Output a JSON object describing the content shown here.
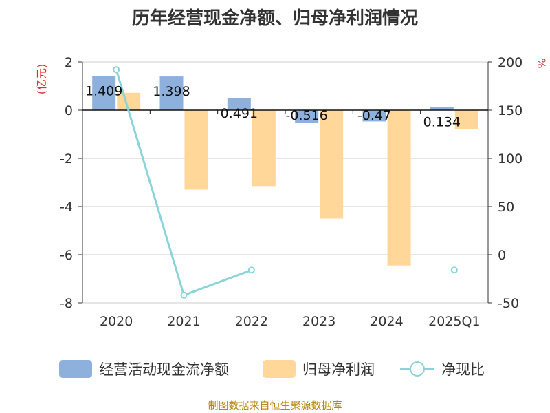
{
  "source": "制图数据来自恒生聚源数据库",
  "chart_data": {
    "type": "bar",
    "title": "历年经营现金净额、归母净利润情况",
    "categories": [
      "2020",
      "2021",
      "2022",
      "2023",
      "2024",
      "2025Q1"
    ],
    "left_axis": {
      "unit": "(亿元)",
      "ylim": [
        -8,
        2
      ],
      "ticks": [
        "2",
        "0",
        "-2",
        "-4",
        "-6",
        "-8"
      ]
    },
    "right_axis": {
      "unit": "%",
      "ylim": [
        -50,
        200
      ],
      "ticks": [
        "200",
        "150",
        "100",
        "50",
        "0",
        "-50"
      ]
    },
    "series": [
      {
        "name": "经营活动现金流净额",
        "type": "bar",
        "axis": "left",
        "color": "#8eb0dc",
        "values": [
          1.409,
          1.398,
          0.491,
          -0.516,
          -0.47,
          0.134
        ],
        "labels": [
          "1.409",
          "1.398",
          "0.491",
          "-0.516",
          "-0.47",
          "0.134"
        ]
      },
      {
        "name": "归母净利润",
        "type": "bar",
        "axis": "left",
        "color": "#ffd799",
        "values": [
          0.72,
          -3.3,
          -3.15,
          -4.5,
          -6.45,
          -0.8
        ]
      },
      {
        "name": "净现比",
        "type": "line",
        "axis": "right",
        "color": "#88d4d8",
        "values": [
          192,
          -42,
          -16,
          null,
          null,
          -16
        ]
      }
    ],
    "grid": true,
    "legend": "bottom"
  }
}
